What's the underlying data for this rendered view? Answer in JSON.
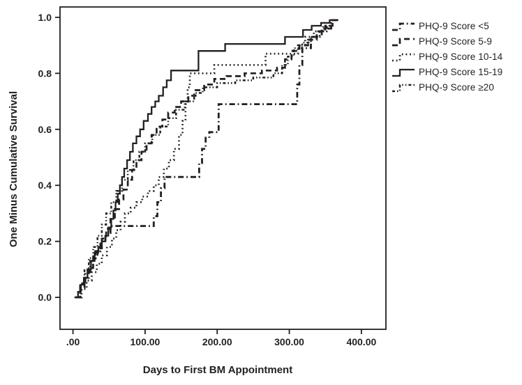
{
  "figure": {
    "background": "#ffffff",
    "ink_color": "#231f20"
  },
  "chart_data": {
    "type": "line",
    "subtype": "step-survival",
    "title": "",
    "xlabel": "Days to First BM Appointment",
    "ylabel": "One Minus Cumulative Survival",
    "x_axis": {
      "min": -18,
      "max": 434
    },
    "y_axis": {
      "min": -0.114,
      "max": 1.037
    },
    "x_ticks": {
      "values": [
        0,
        100,
        200,
        300,
        400
      ],
      "labels": [
        ".00",
        "100.00",
        "200.00",
        "300.00",
        "400.00"
      ]
    },
    "y_ticks": {
      "values": [
        0,
        0.2,
        0.4,
        0.6,
        0.8,
        1.0
      ],
      "labels": [
        "0.0",
        "0.2",
        "0.4",
        "0.6",
        "0.8",
        "1.0"
      ]
    },
    "grid": false,
    "legend_position": "upper-right-outside",
    "series": [
      {
        "name": "PHQ-9 Score <5",
        "style": "dash-dot",
        "end_day": 368,
        "points": [
          [
            3,
            0
          ],
          [
            10,
            0.05
          ],
          [
            17,
            0.09
          ],
          [
            24,
            0.13
          ],
          [
            31,
            0.165
          ],
          [
            38,
            0.2
          ],
          [
            45,
            0.23
          ],
          [
            52,
            0.255
          ],
          [
            112,
            0.29
          ],
          [
            117,
            0.34
          ],
          [
            122,
            0.39
          ],
          [
            127,
            0.43
          ],
          [
            175,
            0.48
          ],
          [
            179,
            0.53
          ],
          [
            184,
            0.57
          ],
          [
            189,
            0.59
          ],
          [
            202,
            0.69
          ],
          [
            311,
            0.76
          ],
          [
            314,
            0.83
          ],
          [
            318,
            0.89
          ],
          [
            330,
            0.93
          ],
          [
            345,
            0.96
          ],
          [
            358,
            0.99
          ]
        ]
      },
      {
        "name": "PHQ-9 Score 5-9",
        "style": "dash",
        "end_day": 367,
        "points": [
          [
            4,
            0
          ],
          [
            10,
            0.035
          ],
          [
            16,
            0.07
          ],
          [
            22,
            0.105
          ],
          [
            28,
            0.14
          ],
          [
            34,
            0.175
          ],
          [
            40,
            0.21
          ],
          [
            46,
            0.245
          ],
          [
            52,
            0.28
          ],
          [
            58,
            0.315
          ],
          [
            64,
            0.35
          ],
          [
            70,
            0.385
          ],
          [
            76,
            0.42
          ],
          [
            82,
            0.455
          ],
          [
            88,
            0.49
          ],
          [
            95,
            0.52
          ],
          [
            102,
            0.55
          ],
          [
            109,
            0.58
          ],
          [
            116,
            0.61
          ],
          [
            124,
            0.635
          ],
          [
            132,
            0.66
          ],
          [
            141,
            0.68
          ],
          [
            150,
            0.7
          ],
          [
            160,
            0.72
          ],
          [
            170,
            0.74
          ],
          [
            182,
            0.76
          ],
          [
            196,
            0.78
          ],
          [
            213,
            0.79
          ],
          [
            238,
            0.8
          ],
          [
            262,
            0.81
          ],
          [
            283,
            0.82
          ],
          [
            294,
            0.85
          ],
          [
            303,
            0.88
          ],
          [
            314,
            0.9
          ],
          [
            326,
            0.92
          ],
          [
            338,
            0.95
          ],
          [
            350,
            0.97
          ],
          [
            360,
            0.99
          ]
        ]
      },
      {
        "name": "PHQ-9 Score 10-14",
        "style": "dot",
        "end_day": 366,
        "points": [
          [
            5,
            0
          ],
          [
            12,
            0.03
          ],
          [
            19,
            0.06
          ],
          [
            26,
            0.09
          ],
          [
            33,
            0.12
          ],
          [
            40,
            0.15
          ],
          [
            47,
            0.18
          ],
          [
            54,
            0.21
          ],
          [
            60,
            0.24
          ],
          [
            66,
            0.27
          ],
          [
            72,
            0.3
          ],
          [
            80,
            0.32
          ],
          [
            88,
            0.34
          ],
          [
            96,
            0.36
          ],
          [
            104,
            0.38
          ],
          [
            112,
            0.4
          ],
          [
            119,
            0.43
          ],
          [
            126,
            0.46
          ],
          [
            133,
            0.49
          ],
          [
            140,
            0.53
          ],
          [
            147,
            0.58
          ],
          [
            152,
            0.63
          ],
          [
            156,
            0.69
          ],
          [
            159,
            0.75
          ],
          [
            162,
            0.8
          ],
          [
            196,
            0.83
          ],
          [
            267,
            0.87
          ],
          [
            312,
            0.9
          ],
          [
            322,
            0.93
          ],
          [
            334,
            0.95
          ],
          [
            347,
            0.97
          ],
          [
            358,
            0.99
          ]
        ]
      },
      {
        "name": "PHQ-9 Score 15-19",
        "style": "solid",
        "end_day": 368,
        "points": [
          [
            2,
            0
          ],
          [
            7,
            0.02
          ],
          [
            11,
            0.045
          ],
          [
            15,
            0.07
          ],
          [
            20,
            0.1
          ],
          [
            25,
            0.13
          ],
          [
            30,
            0.16
          ],
          [
            35,
            0.18
          ],
          [
            40,
            0.2
          ],
          [
            45,
            0.22
          ],
          [
            49,
            0.25
          ],
          [
            53,
            0.28
          ],
          [
            56,
            0.31
          ],
          [
            59,
            0.34
          ],
          [
            62,
            0.37
          ],
          [
            65,
            0.4
          ],
          [
            68,
            0.43
          ],
          [
            71,
            0.46
          ],
          [
            75,
            0.49
          ],
          [
            79,
            0.52
          ],
          [
            83,
            0.55
          ],
          [
            88,
            0.575
          ],
          [
            93,
            0.6
          ],
          [
            98,
            0.63
          ],
          [
            104,
            0.655
          ],
          [
            109,
            0.68
          ],
          [
            114,
            0.7
          ],
          [
            119,
            0.72
          ],
          [
            125,
            0.75
          ],
          [
            130,
            0.775
          ],
          [
            136,
            0.81
          ],
          [
            174,
            0.88
          ],
          [
            211,
            0.905
          ],
          [
            294,
            0.93
          ],
          [
            319,
            0.955
          ],
          [
            331,
            0.97
          ],
          [
            344,
            0.98
          ],
          [
            356,
            0.99
          ]
        ]
      },
      {
        "name": "PHQ-9 Score ≥20",
        "style": "dash-dot-dot",
        "end_day": 363,
        "points": [
          [
            4,
            0
          ],
          [
            10,
            0.05
          ],
          [
            16,
            0.1
          ],
          [
            22,
            0.14
          ],
          [
            28,
            0.18
          ],
          [
            34,
            0.22
          ],
          [
            40,
            0.26
          ],
          [
            46,
            0.3
          ],
          [
            53,
            0.34
          ],
          [
            60,
            0.38
          ],
          [
            68,
            0.42
          ],
          [
            76,
            0.455
          ],
          [
            84,
            0.49
          ],
          [
            92,
            0.52
          ],
          [
            100,
            0.55
          ],
          [
            110,
            0.58
          ],
          [
            121,
            0.61
          ],
          [
            132,
            0.64
          ],
          [
            143,
            0.67
          ],
          [
            155,
            0.7
          ],
          [
            168,
            0.73
          ],
          [
            180,
            0.75
          ],
          [
            200,
            0.765
          ],
          [
            225,
            0.775
          ],
          [
            250,
            0.785
          ],
          [
            278,
            0.8
          ],
          [
            290,
            0.83
          ],
          [
            298,
            0.86
          ],
          [
            306,
            0.89
          ],
          [
            318,
            0.91
          ],
          [
            330,
            0.93
          ],
          [
            342,
            0.95
          ],
          [
            352,
            0.97
          ]
        ]
      }
    ]
  }
}
